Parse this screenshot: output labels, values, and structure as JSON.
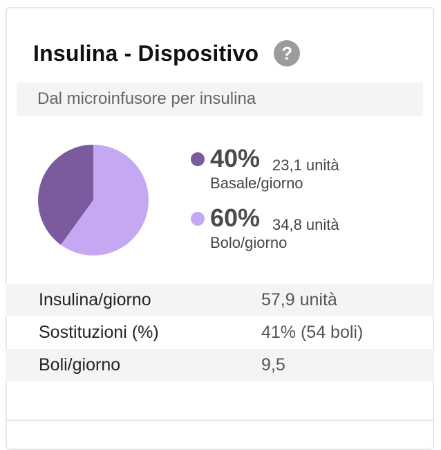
{
  "card": {
    "title": "Insulina - Dispositivo",
    "help_symbol": "?",
    "subtitle": "Dal microinfusore per insulina"
  },
  "chart_data": {
    "type": "pie",
    "slices": [
      {
        "name": "Basale/giorno",
        "value": 40,
        "color": "#7b5a9e"
      },
      {
        "name": "Bolo/giorno",
        "value": 60,
        "color": "#c5a8f2"
      }
    ]
  },
  "legend": [
    {
      "percent": "40%",
      "units": "23,1 unità",
      "caption": "Basale/giorno",
      "color": "#7b5a9e"
    },
    {
      "percent": "60%",
      "units": "34,8 unità",
      "caption": "Bolo/giorno",
      "color": "#c5a8f2"
    }
  ],
  "stats": [
    {
      "label": "Insulina/giorno",
      "value": "57,9 unità"
    },
    {
      "label": "Sostituzioni (%)",
      "value": "41% (54 boli)"
    },
    {
      "label": "Boli/giorno",
      "value": "9,5"
    }
  ]
}
